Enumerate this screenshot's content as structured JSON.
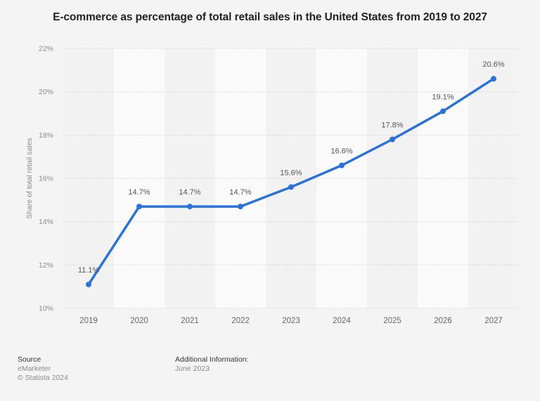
{
  "title": "E-commerce as percentage of total retail sales in the United States from 2019 to 2027",
  "footer": {
    "source_label": "Source",
    "source_name": "eMarketer",
    "copyright": "© Statista 2024",
    "additional_label": "Additional Information:",
    "additional_value": "June 2023"
  },
  "colors": {
    "line": "#2a72d8",
    "background": "#f4f4f4",
    "band_light": "#fafafa",
    "grid": "#d6d6d6"
  },
  "chart_data": {
    "type": "line",
    "title": "E-commerce as percentage of total retail sales in the United States from 2019 to 2027",
    "xlabel": "",
    "ylabel": "Share of total retail sales",
    "categories": [
      "2019",
      "2020",
      "2021",
      "2022",
      "2023",
      "2024",
      "2025",
      "2026",
      "2027"
    ],
    "series": [
      {
        "name": "Share of total retail sales",
        "values": [
          11.1,
          14.7,
          14.7,
          14.7,
          15.6,
          16.6,
          17.8,
          19.1,
          20.6
        ],
        "labels": [
          "11.1%",
          "14.7%",
          "14.7%",
          "14.7%",
          "15.6%",
          "16.6%",
          "17.8%",
          "19.1%",
          "20.6%"
        ]
      }
    ],
    "ylim": [
      10,
      22
    ],
    "yticks": [
      10,
      12,
      14,
      16,
      18,
      20,
      22
    ],
    "ytick_labels": [
      "10%",
      "12%",
      "14%",
      "16%",
      "18%",
      "20%",
      "22%"
    ],
    "grid": true,
    "legend": "none"
  }
}
